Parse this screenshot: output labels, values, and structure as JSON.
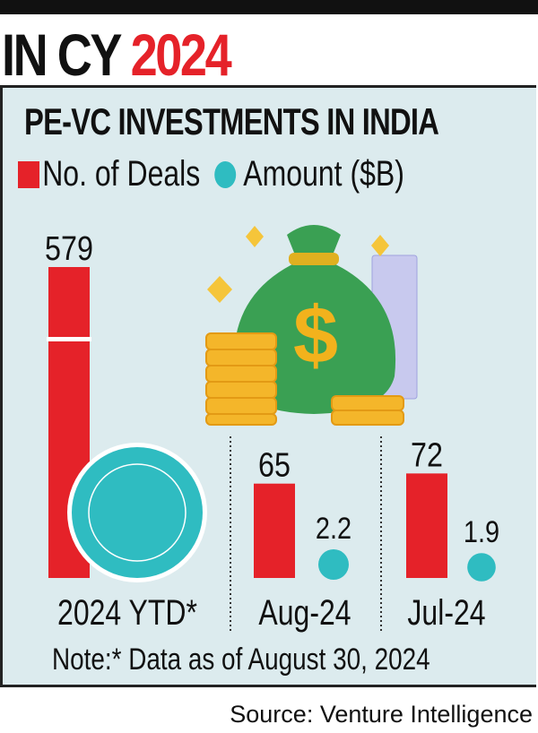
{
  "header": {
    "title_prefix": "IN CY",
    "title_year": "2024"
  },
  "chart_data": {
    "type": "bar",
    "title": "PE-VC INVESTMENTS IN INDIA",
    "legend": [
      {
        "label": "No. of Deals",
        "color": "#e52229",
        "shape": "square"
      },
      {
        "label": "Amount ($B)",
        "color": "#2fbcc1",
        "shape": "circle"
      }
    ],
    "legend_placement": "top-left",
    "categories": [
      "2024 YTD*",
      "Aug-24",
      "Jul-24"
    ],
    "series": [
      {
        "name": "No. of Deals",
        "values": [
          579,
          65,
          72
        ],
        "labels": [
          "579",
          "65",
          "72"
        ],
        "color": "#e52229"
      },
      {
        "name": "Amount ($B)",
        "values": [
          null,
          2.2,
          1.9
        ],
        "labels": [
          "",
          "2.2",
          "1.9"
        ],
        "color": "#2fbcc1"
      }
    ],
    "axis_break_on_first_bar": true,
    "note": "Note:* Data as of August 30, 2024",
    "source": "Source: Venture Intelligence"
  }
}
